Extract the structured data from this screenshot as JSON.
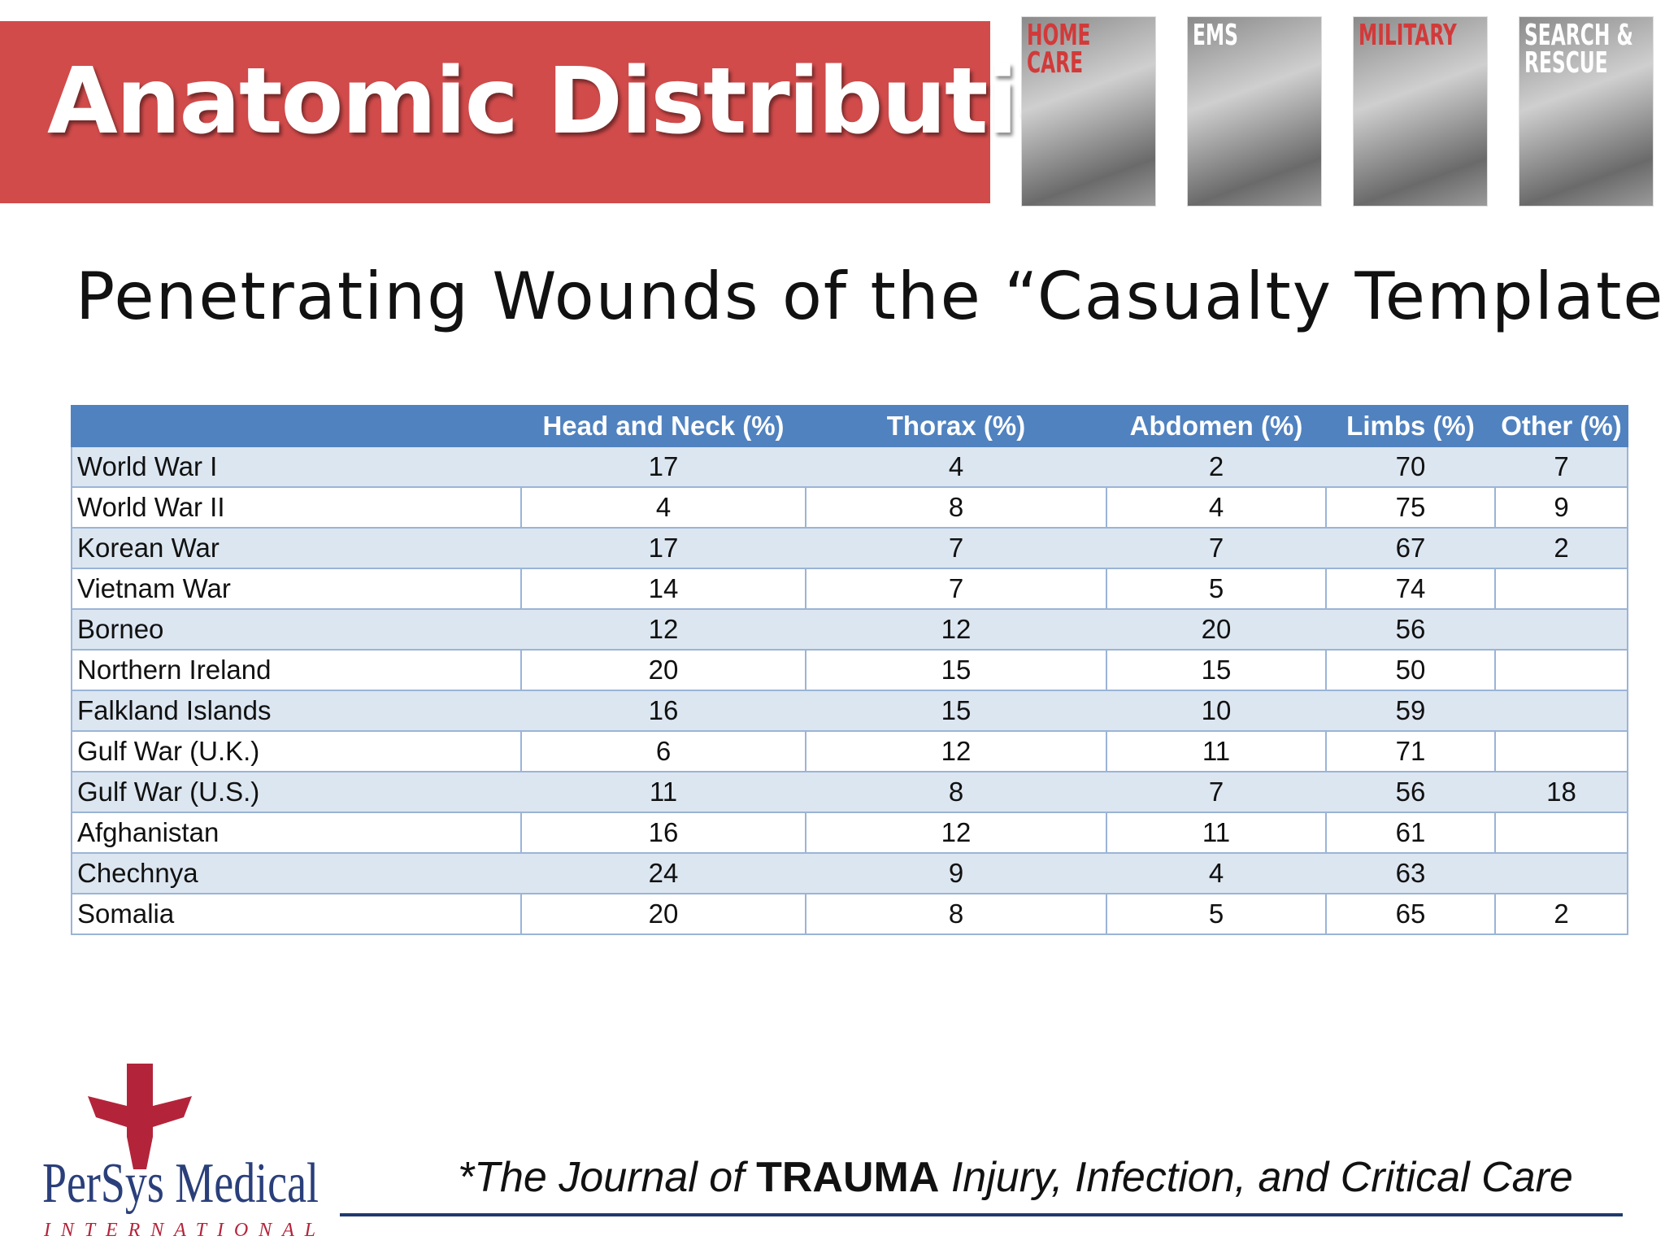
{
  "header": {
    "title": "Anatomic Distribution",
    "photos": [
      [
        "HOME",
        "CARE"
      ],
      [
        "EMS"
      ],
      [
        "MILITARY"
      ],
      [
        "SEARCH &",
        "RESCUE"
      ]
    ]
  },
  "subtitle": "Penetrating Wounds of the “Casualty Template”",
  "table": {
    "columns": [
      null,
      "Head and Neck (%)",
      "Thorax (%)",
      "Abdomen (%)",
      "Limbs (%)",
      "Other (%)"
    ],
    "rows": [
      [
        "World War I",
        17,
        4,
        2,
        70,
        7
      ],
      [
        "World War II",
        4,
        8,
        4,
        75,
        9
      ],
      [
        "Korean War",
        17,
        7,
        7,
        67,
        2
      ],
      [
        "Vietnam War",
        14,
        7,
        5,
        74,
        null
      ],
      [
        "Borneo",
        12,
        12,
        20,
        56,
        null
      ],
      [
        "Northern Ireland",
        20,
        15,
        15,
        50,
        null
      ],
      [
        "Falkland Islands",
        16,
        15,
        10,
        59,
        null
      ],
      [
        "Gulf War (U.K.)",
        6,
        12,
        11,
        71,
        null
      ],
      [
        "Gulf War (U.S.)",
        11,
        8,
        7,
        56,
        18
      ],
      [
        "Afghanistan",
        16,
        12,
        11,
        61,
        null
      ],
      [
        "Chechnya",
        24,
        9,
        4,
        63,
        null
      ],
      [
        "Somalia",
        20,
        8,
        5,
        65,
        2
      ]
    ]
  },
  "footer": {
    "logo": {
      "name": "PerSys Medical",
      "tagline": "INTERNATIONAL"
    },
    "citation": [
      "*The Journal of",
      "TRAUMA",
      "Injury, Infection, and Critical Care"
    ]
  }
}
